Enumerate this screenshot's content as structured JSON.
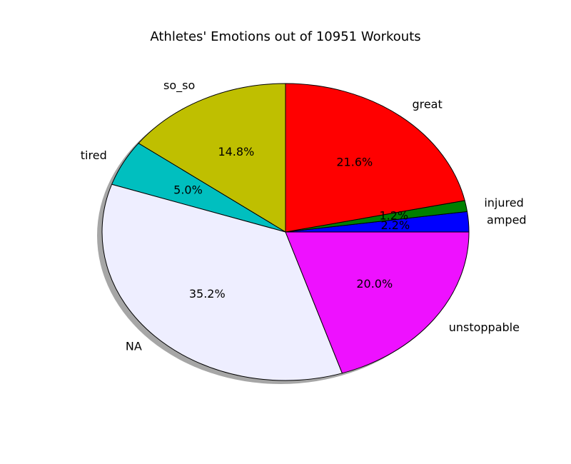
{
  "chart_data": {
    "type": "pie",
    "title": "Athletes' Emotions out of 10951 Workouts",
    "shadow": true,
    "start_angle_deg": 0,
    "direction": "counterclockwise",
    "slices": [
      {
        "label": "amped",
        "value": 2.2,
        "pct_text": "2.2%",
        "color": "#0000ff"
      },
      {
        "label": "injured",
        "value": 1.2,
        "pct_text": "1.2%",
        "color": "#008000"
      },
      {
        "label": "great",
        "value": 21.6,
        "pct_text": "21.6%",
        "color": "#ff0000"
      },
      {
        "label": "so_so",
        "value": 14.8,
        "pct_text": "14.8%",
        "color": "#bfbf00"
      },
      {
        "label": "tired",
        "value": 5.0,
        "pct_text": "5.0%",
        "color": "#00bfbf"
      },
      {
        "label": "NA",
        "value": 35.2,
        "pct_text": "35.2%",
        "color": "#eeeeff"
      },
      {
        "label": "unstoppable",
        "value": 20.0,
        "pct_text": "20.0%",
        "color": "#ee11ff"
      }
    ]
  }
}
